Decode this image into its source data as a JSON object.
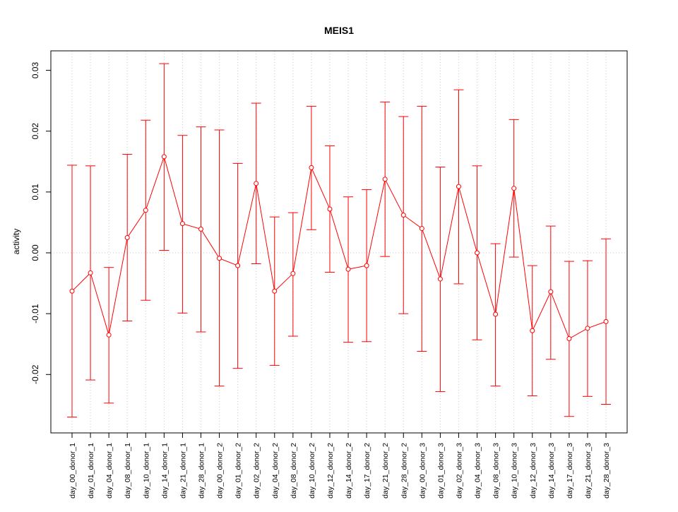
{
  "chart_data": {
    "type": "line",
    "title": "MEIS1",
    "xlabel": "",
    "ylabel": "activity",
    "ylim": [
      -0.0296,
      0.0332
    ],
    "yticks": [
      -0.02,
      -0.01,
      0.0,
      0.01,
      0.02,
      0.03
    ],
    "ytick_labels": [
      "-0.02",
      "-0.01",
      "0.00",
      "0.01",
      "0.02",
      "0.03"
    ],
    "grid": true,
    "colors": {
      "series": "#ff0000",
      "grid": "#c8c8c8",
      "axes": "#000000"
    },
    "categories": [
      "day_00_donor_1",
      "day_01_donor_1",
      "day_04_donor_1",
      "day_08_donor_1",
      "day_10_donor_1",
      "day_14_donor_1",
      "day_21_donor_1",
      "day_28_donor_1",
      "day_00_donor_2",
      "day_01_donor_2",
      "day_02_donor_2",
      "day_04_donor_2",
      "day_08_donor_2",
      "day_10_donor_2",
      "day_12_donor_2",
      "day_14_donor_2",
      "day_17_donor_2",
      "day_21_donor_2",
      "day_28_donor_2",
      "day_00_donor_3",
      "day_01_donor_3",
      "day_02_donor_3",
      "day_04_donor_3",
      "day_08_donor_3",
      "day_10_donor_3",
      "day_12_donor_3",
      "day_14_donor_3",
      "day_17_donor_3",
      "day_21_donor_3",
      "day_28_donor_3"
    ],
    "series": [
      {
        "values": [
          -0.0063,
          -0.0033,
          -0.0135,
          0.0025,
          0.007,
          0.0158,
          0.0048,
          0.0039,
          -0.0009,
          -0.0021,
          0.0114,
          -0.0063,
          -0.0034,
          0.014,
          0.0072,
          -0.0027,
          -0.0021,
          0.0121,
          0.0062,
          0.004,
          -0.0043,
          0.0109,
          0.0,
          -0.0101,
          0.0106,
          -0.0128,
          -0.0064,
          -0.0141,
          -0.0124,
          -0.0113
        ],
        "upper": [
          0.0144,
          0.0143,
          -0.0024,
          0.0162,
          0.0218,
          0.0311,
          0.0193,
          0.0207,
          0.0202,
          0.0147,
          0.0246,
          0.0059,
          0.0066,
          0.0241,
          0.0176,
          0.0092,
          0.0104,
          0.0248,
          0.0224,
          0.0241,
          0.0141,
          0.0268,
          0.0143,
          0.0015,
          0.0219,
          -0.0021,
          0.0044,
          -0.0014,
          -0.0013,
          0.0023
        ],
        "lower": [
          -0.027,
          -0.0209,
          -0.0247,
          -0.0112,
          -0.0078,
          0.0004,
          -0.0099,
          -0.013,
          -0.0219,
          -0.019,
          -0.0018,
          -0.0185,
          -0.0137,
          0.0038,
          -0.0032,
          -0.0147,
          -0.0146,
          -0.0006,
          -0.01,
          -0.0162,
          -0.0228,
          -0.0051,
          -0.0143,
          -0.0219,
          -0.0007,
          -0.0235,
          -0.0175,
          -0.0269,
          -0.0236,
          -0.0249
        ]
      }
    ]
  }
}
